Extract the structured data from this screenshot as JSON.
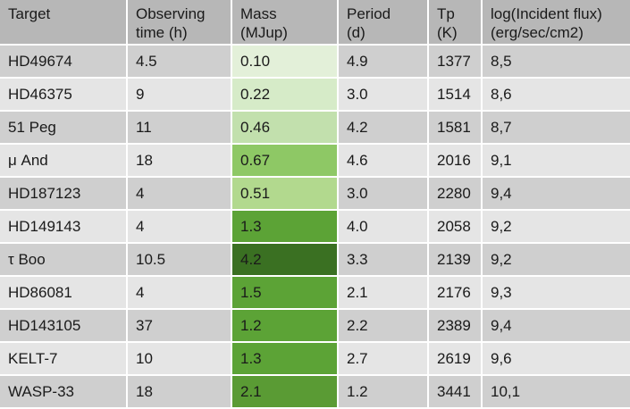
{
  "table": {
    "headers": [
      "Target",
      "Observing\ntime (h)",
      "Mass\n(MJup)",
      "Period\n(d)",
      "Tp\n(K)",
      "log(Incident flux)\n(erg/sec/cm2)"
    ],
    "rows": [
      {
        "target": "HD49674",
        "time": "4.5",
        "mass": "0.10",
        "period": "4.9",
        "tp": "1377",
        "flux": "8,5",
        "mass_color": "#e3f0d9"
      },
      {
        "target": "HD46375",
        "time": "9",
        "mass": "0.22",
        "period": "3.0",
        "tp": "1514",
        "flux": "8,6",
        "mass_color": "#d6ebc8"
      },
      {
        "target": "51 Peg",
        "time": "11",
        "mass": "0.46",
        "period": "4.2",
        "tp": "1581",
        "flux": "8,7",
        "mass_color": "#c2e0ad"
      },
      {
        "target": "μ And",
        "time": "18",
        "mass": "0.67",
        "period": "4.6",
        "tp": "2016",
        "flux": "9,1",
        "mass_color": "#8ec865"
      },
      {
        "target": "HD187123",
        "time": "4",
        "mass": "0.51",
        "period": "3.0",
        "tp": "2280",
        "flux": "9,4",
        "mass_color": "#b2d98e"
      },
      {
        "target": "HD149143",
        "time": "4",
        "mass": "1.3",
        "period": "4.0",
        "tp": "2058",
        "flux": "9,2",
        "mass_color": "#5ca336"
      },
      {
        "target": "τ Boo",
        "time": "10.5",
        "mass": "4.2",
        "period": "3.3",
        "tp": "2139",
        "flux": "9,2",
        "mass_color": "#3a7022"
      },
      {
        "target": "HD86081",
        "time": "4",
        "mass": "1.5",
        "period": "2.1",
        "tp": "2176",
        "flux": "9,3",
        "mass_color": "#5ca336"
      },
      {
        "target": "HD143105",
        "time": "37",
        "mass": "1.2",
        "period": "2.2",
        "tp": "2389",
        "flux": "9,4",
        "mass_color": "#5ca336"
      },
      {
        "target": "KELT-7",
        "time": "10",
        "mass": "1.3",
        "period": "2.7",
        "tp": "2619",
        "flux": "9,6",
        "mass_color": "#5ca336"
      },
      {
        "target": "WASP-33",
        "time": "18",
        "mass": "2.1",
        "period": "1.2",
        "tp": "3441",
        "flux": "10,1",
        "mass_color": "#5a9b34"
      }
    ]
  },
  "colors": {
    "header_bg": "#b7b7b7",
    "row_odd_bg": "#cfcfcf",
    "row_even_bg": "#e5e5e5"
  }
}
